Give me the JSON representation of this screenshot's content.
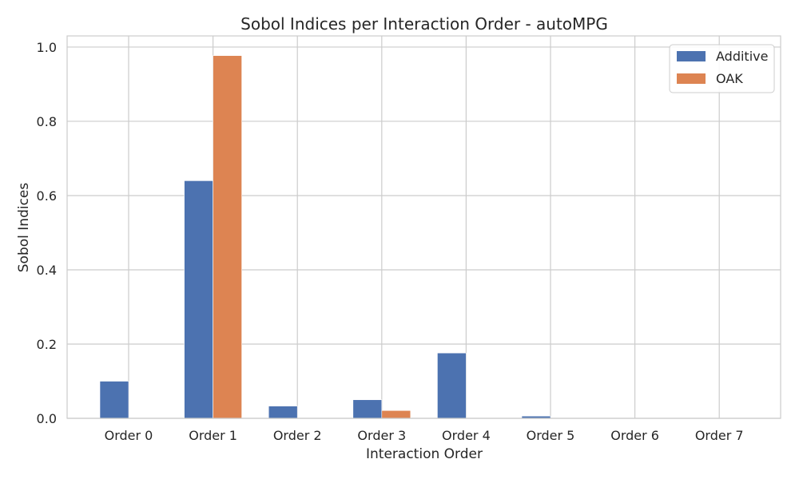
{
  "chart_data": {
    "type": "bar",
    "title": "Sobol Indices per Interaction Order - autoMPG",
    "xlabel": "Interaction Order",
    "ylabel": "Sobol Indices",
    "categories": [
      "Order 0",
      "Order 1",
      "Order 2",
      "Order 3",
      "Order 4",
      "Order 5",
      "Order 6",
      "Order 7"
    ],
    "series": [
      {
        "name": "Additive",
        "color": "#4c72b0",
        "values": [
          0.1,
          0.64,
          0.033,
          0.05,
          0.176,
          0.006,
          0.0,
          0.0
        ]
      },
      {
        "name": "OAK",
        "color": "#dd8452",
        "values": [
          0.0,
          0.977,
          0.0,
          0.021,
          0.0,
          0.0,
          0.0,
          0.0
        ]
      }
    ],
    "ylim": [
      0,
      1.03
    ],
    "yticks": [
      0.0,
      0.2,
      0.4,
      0.6,
      0.8,
      1.0
    ],
    "ytick_labels": [
      "0.0",
      "0.2",
      "0.4",
      "0.6",
      "0.8",
      "1.0"
    ],
    "grid": true,
    "legend_position": "top-right"
  }
}
